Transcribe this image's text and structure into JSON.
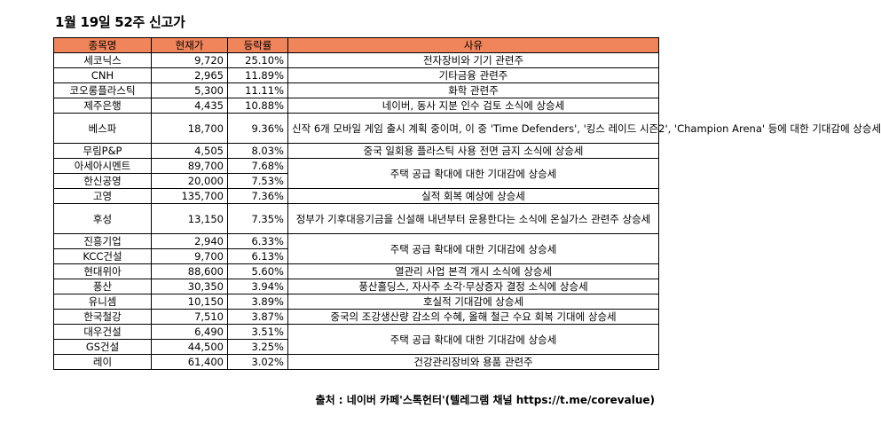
{
  "title": "1월 19일 52주 신고가",
  "headers": {
    "name": "종목명",
    "price": "현재가",
    "rate": "등락률",
    "reason": "사유"
  },
  "rows": [
    {
      "name": "세코닉스",
      "price": "9,720",
      "rate": "25.10%",
      "reason": "전자장비와 기기 관련주"
    },
    {
      "name": "CNH",
      "price": "2,965",
      "rate": "11.89%",
      "reason": "기타금융 관련주"
    },
    {
      "name": "코오롱플라스틱",
      "price": "5,300",
      "rate": "11.11%",
      "reason": "화학 관련주"
    },
    {
      "name": "제주은행",
      "price": "4,435",
      "rate": "10.88%",
      "reason": "네이버, 동사 지분 인수 검토 소식에 상승세"
    },
    {
      "name": "베스파",
      "price": "18,700",
      "rate": "9.36%",
      "reason": "신작 6개 모바일 게임 출시 계획 중이며, 이 중 'Time Defenders', '킹스 레이드 시즌2', 'Champion Arena' 등에 대한 기대감에 상승세"
    },
    {
      "name": "무림P&P",
      "price": "4,505",
      "rate": "8.03%",
      "reason": "중국 일회용 플라스틱 사용 전면 금지 소식에 상승세"
    },
    {
      "name": "아세아시멘트",
      "price": "89,700",
      "rate": "7.68%",
      "reason": "주택 공급 확대에 대한 기대감에 상승세"
    },
    {
      "name": "한신공영",
      "price": "20,000",
      "rate": "7.53%",
      "reason": ""
    },
    {
      "name": "고영",
      "price": "135,700",
      "rate": "7.36%",
      "reason": "실적 회복 예상에 상승세"
    },
    {
      "name": "후성",
      "price": "13,150",
      "rate": "7.35%",
      "reason": "정부가 기후대응기금을 신설해 내년부터 운용한다는 소식에 온실가스 관련주 상승세"
    },
    {
      "name": "진흥기업",
      "price": "2,940",
      "rate": "6.33%",
      "reason": "주택 공급 확대에 대한 기대감에 상승세"
    },
    {
      "name": "KCC건설",
      "price": "9,700",
      "rate": "6.13%",
      "reason": ""
    },
    {
      "name": "현대위아",
      "price": "88,600",
      "rate": "5.60%",
      "reason": "열관리 사업 본격 개시 소식에 상승세"
    },
    {
      "name": "풍산",
      "price": "30,350",
      "rate": "3.94%",
      "reason": "풍산홀딩스, 자사주 소각·무상증자 결정 소식에 상승세"
    },
    {
      "name": "유니셈",
      "price": "10,150",
      "rate": "3.89%",
      "reason": "호실적 기대감에 상승세"
    },
    {
      "name": "한국철강",
      "price": "7,510",
      "rate": "3.87%",
      "reason": "중국의 조강생산량 감소의 수혜, 올해 철근 수요 회복 기대에 상승세"
    },
    {
      "name": "대우건설",
      "price": "6,490",
      "rate": "3.51%",
      "reason": "주택 공급 확대에 대한 기대감에 상승세"
    },
    {
      "name": "GS건설",
      "price": "44,500",
      "rate": "3.25%",
      "reason": ""
    },
    {
      "name": "레이",
      "price": "61,400",
      "rate": "3.02%",
      "reason": "건강관리장비와 용품 관련주"
    }
  ],
  "source": "출처 : 네이버 카페'스톡헌터'(텔레그램 채널 https://t.me/corevalue)"
}
